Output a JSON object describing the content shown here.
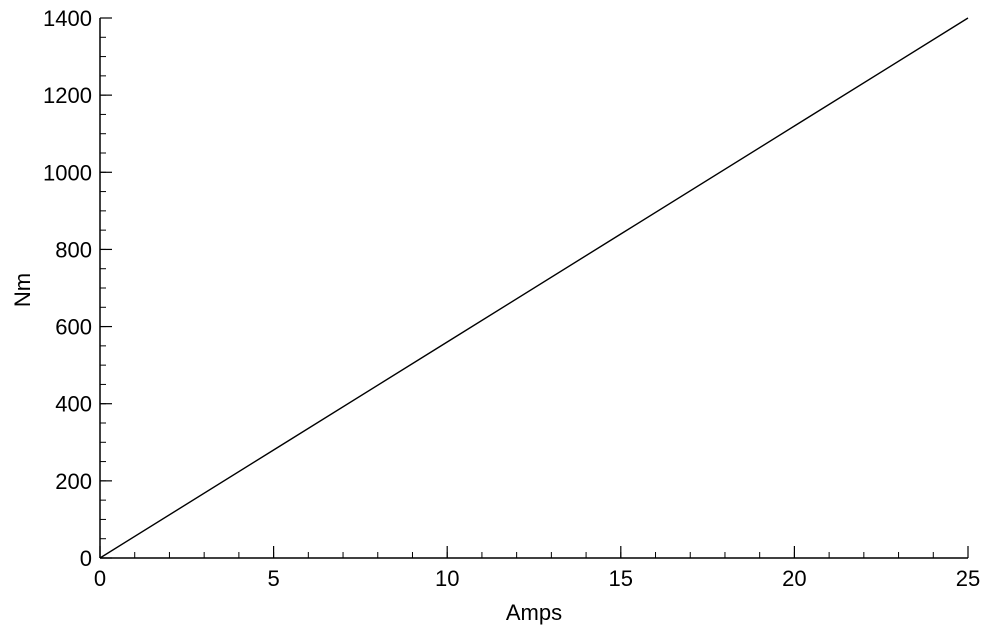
{
  "chart_data": {
    "type": "line",
    "title": "",
    "xlabel": "Amps",
    "ylabel": "Nm",
    "xlim": [
      0,
      25
    ],
    "ylim": [
      0,
      1400
    ],
    "x_ticks": [
      0,
      5,
      10,
      15,
      20,
      25
    ],
    "y_ticks": [
      0,
      200,
      400,
      600,
      800,
      1000,
      1200,
      1400
    ],
    "x_minor_step": 1,
    "y_minor_step": 50,
    "grid": false,
    "legend": "none",
    "series": [
      {
        "color": "#000000",
        "x": [
          0,
          5,
          10,
          15,
          20,
          25
        ],
        "y": [
          0,
          280,
          560,
          840,
          1120,
          1400
        ]
      }
    ]
  }
}
